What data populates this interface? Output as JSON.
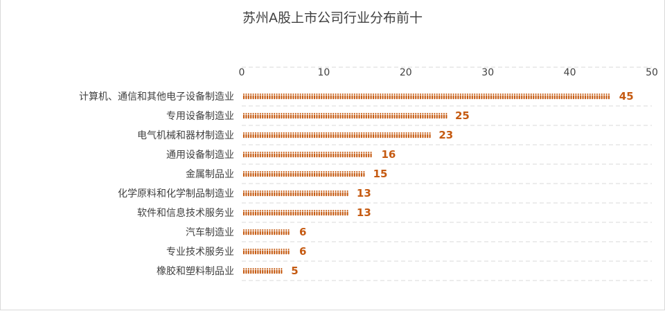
{
  "chart_data": {
    "type": "bar",
    "orientation": "horizontal",
    "title": "苏州A股上市公司行业分布前十",
    "categories": [
      "计算机、通信和其他电子设备制造业",
      "专用设备制造业",
      "电气机械和器材制造业",
      "通用设备制造业",
      "金属制品业",
      "化学原料和化学制品制造业",
      "软件和信息技术服务业",
      "汽车制造业",
      "专业技术服务业",
      "橡胶和塑料制品业"
    ],
    "values": [
      45,
      25,
      23,
      16,
      15,
      13,
      13,
      6,
      6,
      5
    ],
    "xlim": [
      0,
      50
    ],
    "xticks": [
      "0",
      "10",
      "20",
      "30",
      "40",
      "50"
    ],
    "grid": "dashed horizontal lines",
    "bar_style": "pictograph of person icons",
    "colors": {
      "bar": "#c55a11",
      "value_label": "#c55a11",
      "text": "#404040",
      "grid": "#d9d9d9"
    }
  }
}
